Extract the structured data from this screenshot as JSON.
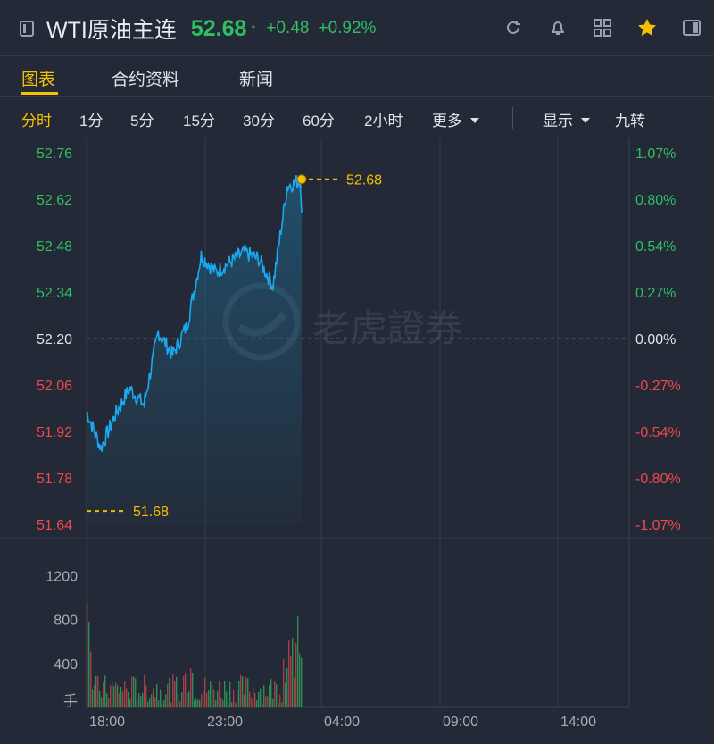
{
  "header": {
    "title": "WTI原油主连",
    "price": "52.68",
    "arrow": "↑",
    "change": "+0.48",
    "change_pct": "+0.92%",
    "icons": [
      "sidebar-icon",
      "refresh-icon",
      "bell-icon",
      "grid-icon",
      "star-icon",
      "panel-icon"
    ]
  },
  "tabs": [
    {
      "label": "图表",
      "active": true
    },
    {
      "label": "合约资料",
      "active": false
    },
    {
      "label": "新闻",
      "active": false
    }
  ],
  "periods": {
    "items": [
      "分时",
      "1分",
      "5分",
      "15分",
      "30分",
      "60分",
      "2小时"
    ],
    "active": "分时",
    "more": "更多",
    "display": "显示",
    "nine_turn": "九转"
  },
  "price_axis": {
    "left_labels": [
      "52.76",
      "52.62",
      "52.48",
      "52.34",
      "52.20",
      "52.06",
      "51.92",
      "51.78",
      "51.64"
    ],
    "right_labels": [
      "1.07%",
      "0.80%",
      "0.54%",
      "0.27%",
      "0.00%",
      "-0.27%",
      "-0.54%",
      "-0.80%",
      "-1.07%"
    ]
  },
  "markers": {
    "high": "52.68",
    "low": "51.68"
  },
  "volume_axis": {
    "labels": [
      "1200",
      "800",
      "400"
    ],
    "unit": "手"
  },
  "time_axis": {
    "labels": [
      "18:00",
      "23:00",
      "04:00",
      "09:00",
      "14:00"
    ]
  },
  "watermark": "老虎證券",
  "colors": {
    "up": "#2fbf63",
    "down": "#f0484b",
    "accent": "#f5c000",
    "line": "#1aa9f0"
  },
  "chart_data": {
    "type": "line",
    "ylim": [
      51.64,
      52.76
    ],
    "base": 52.2,
    "x": [
      "18:00",
      "18:30",
      "19:00",
      "19:30",
      "20:00",
      "20:30",
      "21:00",
      "21:30",
      "22:00",
      "22:30",
      "23:00",
      "23:30",
      "00:00",
      "00:30",
      "01:00",
      "01:30"
    ],
    "y": [
      51.98,
      51.87,
      51.97,
      52.05,
      52.0,
      52.22,
      52.15,
      52.24,
      52.45,
      52.4,
      52.43,
      52.46,
      52.44,
      52.36,
      52.66,
      52.68
    ],
    "volume_ylim": [
      0,
      1400
    ]
  }
}
